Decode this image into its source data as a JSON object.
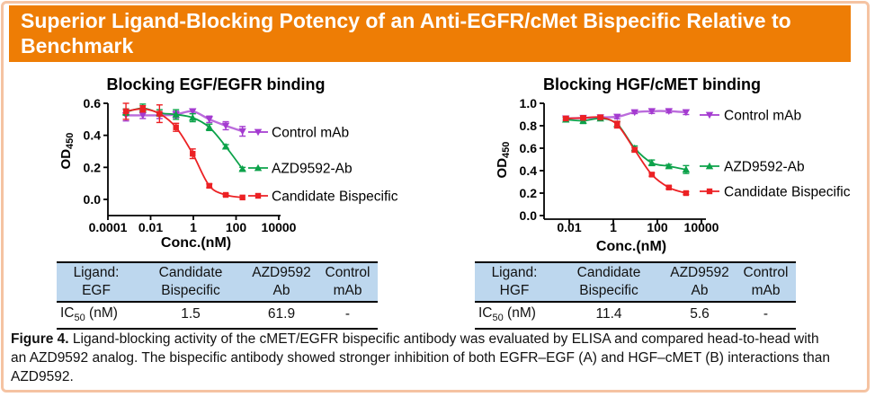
{
  "banner": {
    "title": "Superior Ligand-Blocking Potency of an Anti-EGFR/cMet Bispecific Relative to Benchmark",
    "bg_color": "#EE7D05"
  },
  "colors": {
    "frame_border": "#F5C3A2",
    "table_header_bg": "#BDD7EE",
    "control_mab": "#A43BD0",
    "azd9592_ab": "#0CA24A",
    "candidate_bispecific": "#EC2124"
  },
  "chart_data": [
    {
      "type": "line",
      "title": "Blocking EGF/EGFR binding",
      "xlabel": "Conc.(nM)",
      "ylabel": {
        "base": "OD",
        "sub": "450"
      },
      "x_scale": "log",
      "grid": false,
      "legend_position": "right",
      "x_ticks": [
        0.0001,
        0.01,
        1,
        100,
        10000
      ],
      "x_tick_labels": [
        "0.0001",
        "0.01",
        "1",
        "100",
        "10000"
      ],
      "y_ticks": [
        0,
        0.2,
        0.4,
        0.6
      ],
      "y_tick_labels": [
        "0.0",
        "0.2",
        "0.4",
        "0.6"
      ],
      "ylim": [
        0,
        0.6
      ],
      "xlim": [
        0.0001,
        10000
      ],
      "x": [
        0.0007,
        0.0043,
        0.026,
        0.154,
        0.93,
        5.6,
        33,
        200
      ],
      "series": [
        {
          "name": "Control mAb",
          "color": "#A43BD0",
          "marker": "triangle-down",
          "values": [
            0.525,
            0.525,
            0.525,
            0.53,
            0.55,
            0.5,
            0.46,
            0.425
          ],
          "err": [
            0.035,
            0.02,
            0.02,
            0.02,
            0.015,
            0.02,
            0.025,
            0.03
          ]
        },
        {
          "name": "AZD9592-Ab",
          "color": "#0CA24A",
          "marker": "triangle-up",
          "values": [
            0.545,
            0.57,
            0.54,
            0.53,
            0.51,
            0.45,
            0.33,
            0.19
          ],
          "err": [
            0.02,
            0.025,
            0.02,
            0.03,
            0.025,
            0.02,
            0.012,
            0.01
          ]
        },
        {
          "name": "Candidate Bispecific",
          "color": "#EC2124",
          "marker": "square",
          "values": [
            0.55,
            0.565,
            0.535,
            0.45,
            0.285,
            0.085,
            0.028,
            0.012
          ],
          "err": [
            0.05,
            0.02,
            0.055,
            0.025,
            0.03,
            0.012,
            0.006,
            0.004
          ]
        }
      ]
    },
    {
      "type": "line",
      "title": "Blocking HGF/cMET binding",
      "xlabel": "Conc.(nM)",
      "ylabel": {
        "base": "OD",
        "sub": "450"
      },
      "x_scale": "log",
      "grid": false,
      "legend_position": "right",
      "x_ticks": [
        0.01,
        1,
        100,
        10000
      ],
      "x_tick_labels": [
        "0.01",
        "1",
        "100",
        "10000"
      ],
      "y_ticks": [
        0,
        0.2,
        0.4,
        0.6,
        0.8,
        1.0
      ],
      "y_tick_labels": [
        "0.0",
        "0.2",
        "0.4",
        "0.6",
        "0.8",
        "1.0"
      ],
      "ylim": [
        0,
        1.0
      ],
      "xlim": [
        0.01,
        10000
      ],
      "x": [
        0.007,
        0.043,
        0.26,
        1.5,
        9.3,
        56,
        333,
        2000
      ],
      "series": [
        {
          "name": "Control mAb",
          "color": "#A43BD0",
          "marker": "triangle-down",
          "values": [
            0.865,
            0.87,
            0.875,
            0.88,
            0.92,
            0.93,
            0.93,
            0.92
          ],
          "err": [
            0.012,
            0.012,
            0.012,
            0.018,
            0.012,
            0.02,
            0.015,
            0.02
          ]
        },
        {
          "name": "AZD9592-Ab",
          "color": "#0CA24A",
          "marker": "triangle-up",
          "values": [
            0.855,
            0.845,
            0.865,
            0.815,
            0.6,
            0.47,
            0.44,
            0.41
          ],
          "err": [
            0.015,
            0.025,
            0.012,
            0.02,
            0.02,
            0.025,
            0.015,
            0.035
          ]
        },
        {
          "name": "Candidate Bispecific",
          "color": "#EC2124",
          "marker": "square",
          "values": [
            0.865,
            0.87,
            0.875,
            0.81,
            0.585,
            0.365,
            0.25,
            0.2
          ],
          "err": [
            0.012,
            0.012,
            0.012,
            0.03,
            0.02,
            0.015,
            0.012,
            0.012
          ]
        }
      ]
    }
  ],
  "tables": [
    {
      "header": [
        [
          "Ligand:",
          "EGF"
        ],
        [
          "Candidate",
          "Bispecific"
        ],
        [
          "AZD9592",
          "Ab"
        ],
        [
          "Control",
          "mAb"
        ]
      ],
      "row_label": {
        "base": "IC",
        "sub": "50",
        "rest": " (nM)"
      },
      "values": [
        "1.5",
        "61.9",
        "-"
      ]
    },
    {
      "header": [
        [
          "Ligand:",
          "HGF"
        ],
        [
          "Candidate",
          "Bispecific"
        ],
        [
          "AZD9592",
          "Ab"
        ],
        [
          "Control",
          "mAb"
        ]
      ],
      "row_label": {
        "base": "IC",
        "sub": "50",
        "rest": " (nM)"
      },
      "values": [
        "11.4",
        "5.6",
        "-"
      ]
    }
  ],
  "caption": {
    "label": "Figure 4.",
    "text": " Ligand-blocking activity of the cMET/EGFR bispecific antibody was evaluated by ELISA and compared head-to-head with an AZD9592 analog. The bispecific antibody showed stronger inhibition of both EGFR–EGF (A) and HGF–cMET (B) interactions than AZD9592."
  }
}
